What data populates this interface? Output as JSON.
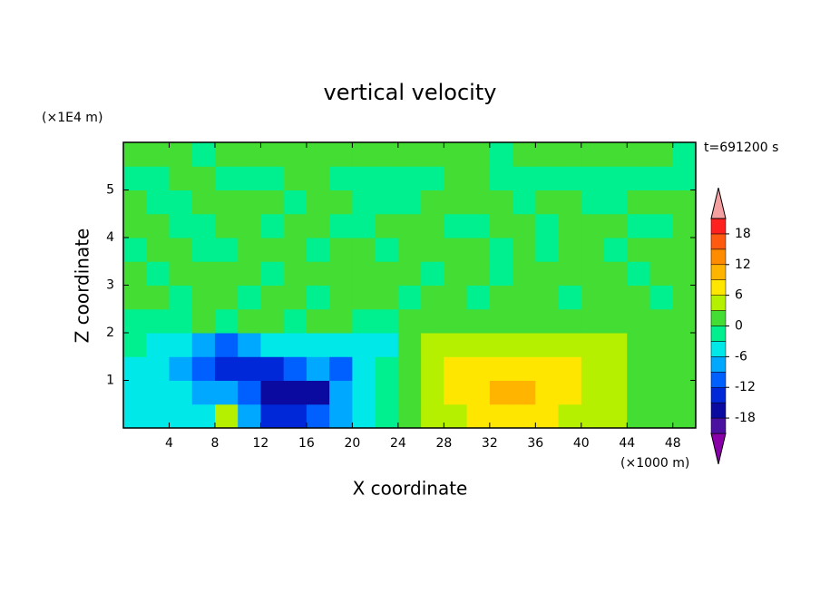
{
  "chart_data": {
    "type": "contour",
    "title": "vertical velocity",
    "xlabel": "X coordinate",
    "ylabel": "Z coordinate",
    "x_unit_label": "(×1000 m)",
    "y_unit_label": "(×1E4 m)",
    "annotation": "t=691200 s",
    "xlim": [
      0,
      50
    ],
    "ylim": [
      0,
      6
    ],
    "xticks": [
      4,
      8,
      12,
      16,
      20,
      24,
      28,
      32,
      36,
      40,
      44,
      48
    ],
    "yticks": [
      1,
      2,
      3,
      4,
      5
    ],
    "x": [
      1,
      3,
      5,
      7,
      9,
      11,
      13,
      15,
      17,
      19,
      21,
      23,
      25,
      27,
      29,
      31,
      33,
      35,
      37,
      39,
      41,
      43,
      45,
      47,
      49
    ],
    "y": [
      0.25,
      0.75,
      1.25,
      1.75,
      2.25,
      2.75,
      3.25,
      3.75,
      4.25,
      4.75,
      5.25,
      5.75
    ],
    "values": [
      [
        -4,
        -4,
        -4,
        -5,
        4,
        -7,
        -14,
        -14,
        -12,
        -7,
        -4,
        -2,
        2,
        4,
        5,
        6,
        6,
        7,
        6,
        5,
        5,
        4,
        2,
        1,
        1
      ],
      [
        -4,
        -4,
        -5,
        -7,
        -8,
        -12,
        -16,
        -16,
        -16,
        -9,
        -5,
        -2,
        2,
        5,
        7,
        8,
        10,
        10,
        8,
        7,
        5,
        4,
        2,
        1,
        1
      ],
      [
        -4,
        -5,
        -7,
        -11,
        -14,
        -15,
        -14,
        -12,
        -9,
        -10,
        -5,
        -3,
        2,
        4,
        7,
        8,
        8,
        8,
        7,
        6,
        5,
        4,
        2,
        1,
        1
      ],
      [
        -3,
        -4,
        -6,
        -9,
        -10,
        -7,
        -6,
        -5,
        -4,
        -5,
        -4,
        -4,
        1,
        3,
        4,
        5,
        5,
        5,
        4,
        4,
        3,
        3,
        2,
        1,
        1
      ],
      [
        -2,
        -3,
        -2,
        1,
        -1,
        1,
        2,
        -1,
        1,
        2,
        -1,
        -2,
        1,
        2,
        2,
        2,
        2,
        2,
        2,
        1,
        1,
        1,
        1,
        1,
        1
      ],
      [
        1,
        1,
        -1,
        1,
        1,
        -1,
        1,
        1,
        -1,
        1,
        1,
        1,
        -1,
        1,
        1,
        -1,
        1,
        1,
        1,
        -1,
        1,
        1,
        1,
        -1,
        1
      ],
      [
        1,
        -1,
        1,
        1,
        1,
        1,
        -1,
        1,
        1,
        1,
        1,
        1,
        1,
        -1,
        1,
        1,
        -1,
        1,
        1,
        1,
        1,
        1,
        -1,
        1,
        1
      ],
      [
        -1,
        1,
        1,
        -1,
        -1,
        1,
        1,
        1,
        -1,
        1,
        1,
        -1,
        1,
        1,
        1,
        1,
        -1,
        1,
        -1,
        1,
        1,
        -1,
        1,
        1,
        1
      ],
      [
        1,
        1,
        -1,
        -1,
        1,
        1,
        -1,
        1,
        1,
        -1,
        -1,
        1,
        1,
        1,
        -1,
        -1,
        1,
        1,
        -1,
        1,
        1,
        1,
        -1,
        -1,
        1
      ],
      [
        1,
        -1,
        -1,
        1,
        1,
        1,
        1,
        -1,
        1,
        1,
        -1,
        -1,
        -1,
        1,
        1,
        1,
        1,
        -1,
        1,
        1,
        -1,
        -1,
        1,
        1,
        1
      ],
      [
        -1,
        -1,
        1,
        1,
        -1,
        -1,
        -1,
        1,
        1,
        -1,
        -1,
        -1,
        -1,
        -1,
        1,
        1,
        -1,
        -1,
        -1,
        -1,
        -1,
        -1,
        -1,
        -1,
        -1
      ],
      [
        1,
        1,
        1,
        -1,
        1,
        1,
        1,
        1,
        1,
        1,
        1,
        1,
        1,
        1,
        1,
        1,
        -1,
        1,
        1,
        1,
        1,
        1,
        1,
        1,
        -1
      ]
    ],
    "levels": [
      -21,
      -18,
      -15,
      -12,
      -9,
      -6,
      -3,
      0,
      3,
      6,
      9,
      12,
      15,
      18,
      21
    ],
    "colors": [
      "#8a00a8",
      "#4a10a0",
      "#0a0aa0",
      "#0028d8",
      "#0060ff",
      "#00a8ff",
      "#00e8e8",
      "#00f090",
      "#44dd33",
      "#b4f000",
      "#ffe600",
      "#ffb400",
      "#ff8c00",
      "#ff5a10",
      "#ff2020",
      "#f4a0a0"
    ],
    "colorbar_ticks": [
      -18,
      -12,
      -6,
      0,
      6,
      12,
      18
    ]
  }
}
